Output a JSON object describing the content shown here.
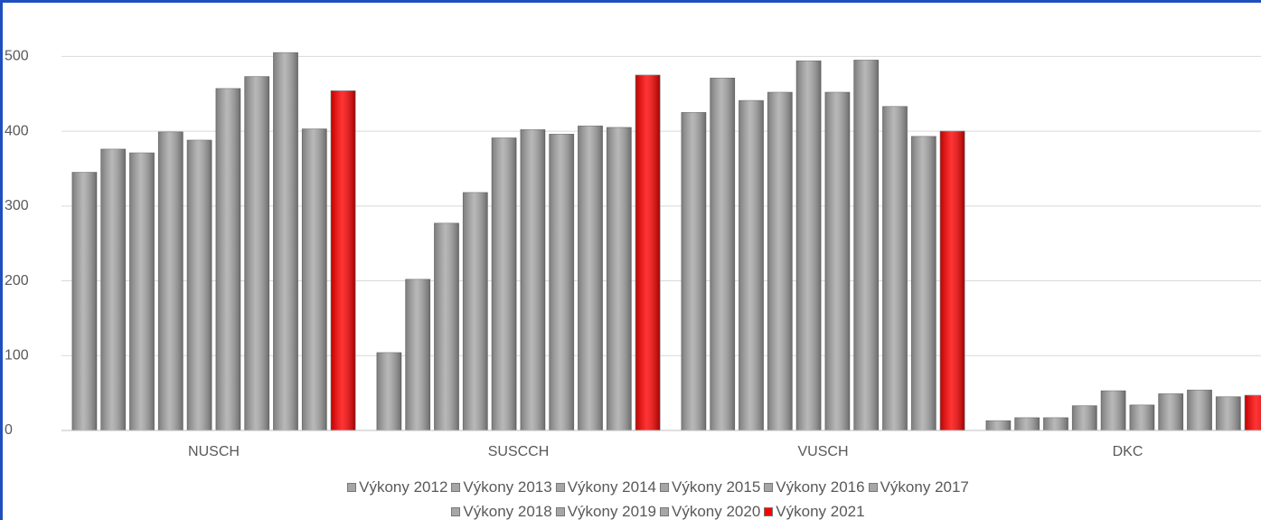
{
  "chart_data": {
    "type": "bar",
    "categories": [
      "NUSCH",
      "SUSCCH",
      "VUSCH",
      "DKC"
    ],
    "series": [
      {
        "name": "Výkony 2012",
        "color": "#a6a6a6",
        "values": [
          345,
          104,
          425,
          13
        ]
      },
      {
        "name": "Výkony 2013",
        "color": "#a6a6a6",
        "values": [
          376,
          202,
          471,
          17
        ]
      },
      {
        "name": "Výkony 2014",
        "color": "#a6a6a6",
        "values": [
          371,
          277,
          441,
          17
        ]
      },
      {
        "name": "Výkony 2015",
        "color": "#a6a6a6",
        "values": [
          399,
          318,
          452,
          33
        ]
      },
      {
        "name": "Výkony 2016",
        "color": "#a6a6a6",
        "values": [
          388,
          391,
          494,
          53
        ]
      },
      {
        "name": "Výkony 2017",
        "color": "#a6a6a6",
        "values": [
          457,
          402,
          452,
          34
        ]
      },
      {
        "name": "Výkony 2018",
        "color": "#a6a6a6",
        "values": [
          473,
          396,
          495,
          49
        ]
      },
      {
        "name": "Výkony 2019",
        "color": "#a6a6a6",
        "values": [
          505,
          407,
          433,
          54
        ]
      },
      {
        "name": "Výkony 2020",
        "color": "#a6a6a6",
        "values": [
          403,
          405,
          393,
          45
        ]
      },
      {
        "name": "Výkony 2021",
        "color": "#ff0000",
        "values": [
          454,
          475,
          400,
          47
        ]
      }
    ],
    "ylim": [
      0,
      550
    ],
    "yticks": [
      0,
      100,
      200,
      300,
      400,
      500
    ],
    "grid": true,
    "legend": "bottom"
  }
}
